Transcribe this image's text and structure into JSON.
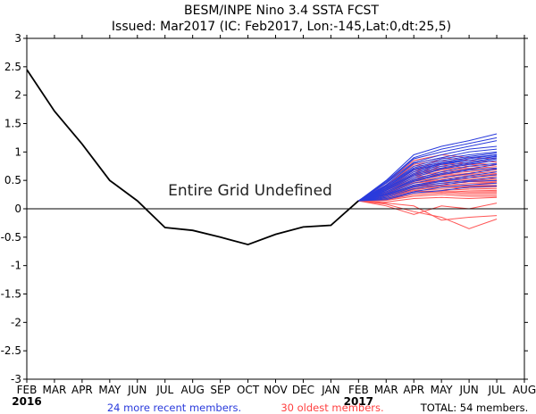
{
  "chart_data": {
    "type": "line",
    "title": "BESM/INPE Nino 3.4 SSTA FCST",
    "subtitle": "Issued: Mar2017 (IC: Feb2017, Lon:-145,Lat:0,dt:25,5)",
    "categories": [
      "FEB",
      "MAR",
      "APR",
      "MAY",
      "JUN",
      "JUL",
      "AUG",
      "SEP",
      "OCT",
      "NOV",
      "DEC",
      "JAN",
      "FEB",
      "MAR",
      "APR",
      "MAY",
      "JUN",
      "JUL",
      "AUG"
    ],
    "year_labels": [
      {
        "index": 0,
        "label": "2016"
      },
      {
        "index": 12,
        "label": "2017"
      }
    ],
    "ylim": [
      -3,
      3
    ],
    "yticks": [
      "-3",
      "-2.5",
      "-2",
      "-1.5",
      "-1",
      "-0.5",
      "0",
      "0.5",
      "1",
      "1.5",
      "2",
      "2.5",
      "3"
    ],
    "annotation": "Entire Grid Undefined",
    "observed": {
      "name": "observed",
      "color": "#000000",
      "x": [
        0,
        1,
        2,
        3,
        4,
        5,
        6,
        7,
        8,
        9,
        10,
        11,
        12
      ],
      "values": [
        2.45,
        1.72,
        1.14,
        0.5,
        0.14,
        -0.33,
        -0.38,
        -0.5,
        -0.63,
        -0.45,
        -0.32,
        -0.29,
        0.14
      ]
    },
    "recent_members": {
      "label": "24 more recent members.",
      "color": "#2a3bdc",
      "x": [
        12,
        13,
        14,
        15,
        16,
        17
      ],
      "series": [
        [
          0.14,
          0.5,
          0.95,
          1.1,
          1.2,
          1.32
        ],
        [
          0.14,
          0.48,
          0.9,
          1.05,
          1.15,
          1.25
        ],
        [
          0.14,
          0.46,
          0.88,
          1.0,
          1.1,
          1.2
        ],
        [
          0.14,
          0.45,
          0.82,
          0.95,
          1.05,
          1.1
        ],
        [
          0.14,
          0.42,
          0.8,
          0.9,
          1.0,
          1.05
        ],
        [
          0.14,
          0.4,
          0.75,
          0.88,
          0.95,
          1.0
        ],
        [
          0.14,
          0.4,
          0.72,
          0.85,
          0.92,
          0.98
        ],
        [
          0.14,
          0.38,
          0.7,
          0.82,
          0.9,
          0.95
        ],
        [
          0.14,
          0.38,
          0.68,
          0.8,
          0.88,
          0.95
        ],
        [
          0.14,
          0.36,
          0.65,
          0.8,
          0.85,
          0.93
        ],
        [
          0.14,
          0.35,
          0.62,
          0.78,
          0.85,
          0.92
        ],
        [
          0.14,
          0.35,
          0.6,
          0.75,
          0.82,
          0.9
        ],
        [
          0.14,
          0.33,
          0.58,
          0.72,
          0.8,
          0.88
        ],
        [
          0.14,
          0.32,
          0.55,
          0.7,
          0.78,
          0.85
        ],
        [
          0.14,
          0.3,
          0.52,
          0.65,
          0.75,
          0.8
        ],
        [
          0.14,
          0.3,
          0.5,
          0.62,
          0.7,
          0.78
        ],
        [
          0.14,
          0.28,
          0.48,
          0.6,
          0.68,
          0.72
        ],
        [
          0.14,
          0.26,
          0.45,
          0.55,
          0.62,
          0.7
        ],
        [
          0.14,
          0.25,
          0.42,
          0.5,
          0.58,
          0.65
        ],
        [
          0.14,
          0.24,
          0.4,
          0.48,
          0.55,
          0.6
        ],
        [
          0.14,
          0.22,
          0.38,
          0.45,
          0.5,
          0.55
        ],
        [
          0.14,
          0.2,
          0.35,
          0.42,
          0.48,
          0.5
        ],
        [
          0.14,
          0.18,
          0.3,
          0.38,
          0.42,
          0.45
        ],
        [
          0.14,
          0.16,
          0.28,
          0.32,
          0.38,
          0.4
        ]
      ]
    },
    "oldest_members": {
      "label": "30 oldest members.",
      "color": "#ff5555",
      "x": [
        12,
        13,
        14,
        15,
        16,
        17
      ],
      "series": [
        [
          0.14,
          0.45,
          0.85,
          0.95,
          0.9,
          0.88
        ],
        [
          0.14,
          0.42,
          0.8,
          0.9,
          0.85,
          0.82
        ],
        [
          0.14,
          0.4,
          0.78,
          0.85,
          0.8,
          0.78
        ],
        [
          0.14,
          0.4,
          0.75,
          0.8,
          0.78,
          0.75
        ],
        [
          0.14,
          0.38,
          0.7,
          0.78,
          0.75,
          0.72
        ],
        [
          0.14,
          0.36,
          0.68,
          0.75,
          0.72,
          0.7
        ],
        [
          0.14,
          0.35,
          0.65,
          0.72,
          0.7,
          0.68
        ],
        [
          0.14,
          0.34,
          0.62,
          0.7,
          0.68,
          0.65
        ],
        [
          0.14,
          0.33,
          0.6,
          0.68,
          0.65,
          0.62
        ],
        [
          0.14,
          0.32,
          0.58,
          0.65,
          0.62,
          0.6
        ],
        [
          0.14,
          0.3,
          0.55,
          0.62,
          0.6,
          0.58
        ],
        [
          0.14,
          0.3,
          0.52,
          0.6,
          0.58,
          0.55
        ],
        [
          0.14,
          0.28,
          0.5,
          0.58,
          0.55,
          0.52
        ],
        [
          0.14,
          0.28,
          0.48,
          0.55,
          0.52,
          0.5
        ],
        [
          0.14,
          0.27,
          0.46,
          0.52,
          0.5,
          0.48
        ],
        [
          0.14,
          0.26,
          0.45,
          0.5,
          0.48,
          0.46
        ],
        [
          0.14,
          0.25,
          0.42,
          0.48,
          0.45,
          0.45
        ],
        [
          0.14,
          0.24,
          0.4,
          0.45,
          0.42,
          0.42
        ],
        [
          0.14,
          0.23,
          0.38,
          0.42,
          0.4,
          0.4
        ],
        [
          0.14,
          0.22,
          0.36,
          0.4,
          0.38,
          0.38
        ],
        [
          0.14,
          0.2,
          0.34,
          0.38,
          0.36,
          0.35
        ],
        [
          0.14,
          0.2,
          0.32,
          0.35,
          0.33,
          0.32
        ],
        [
          0.14,
          0.18,
          0.3,
          0.32,
          0.3,
          0.3
        ],
        [
          0.14,
          0.17,
          0.28,
          0.3,
          0.28,
          0.28
        ],
        [
          0.14,
          0.16,
          0.25,
          0.28,
          0.25,
          0.25
        ],
        [
          0.14,
          0.15,
          0.22,
          0.25,
          0.22,
          0.22
        ],
        [
          0.14,
          0.12,
          0.18,
          0.2,
          0.18,
          0.2
        ],
        [
          0.14,
          0.05,
          -0.1,
          0.05,
          0.0,
          0.1
        ],
        [
          0.14,
          0.1,
          0.05,
          -0.2,
          -0.15,
          -0.12
        ],
        [
          0.14,
          0.08,
          -0.05,
          -0.15,
          -0.35,
          -0.18
        ]
      ]
    },
    "total_label": "TOTAL: 54 members.",
    "zero_line": 0
  }
}
